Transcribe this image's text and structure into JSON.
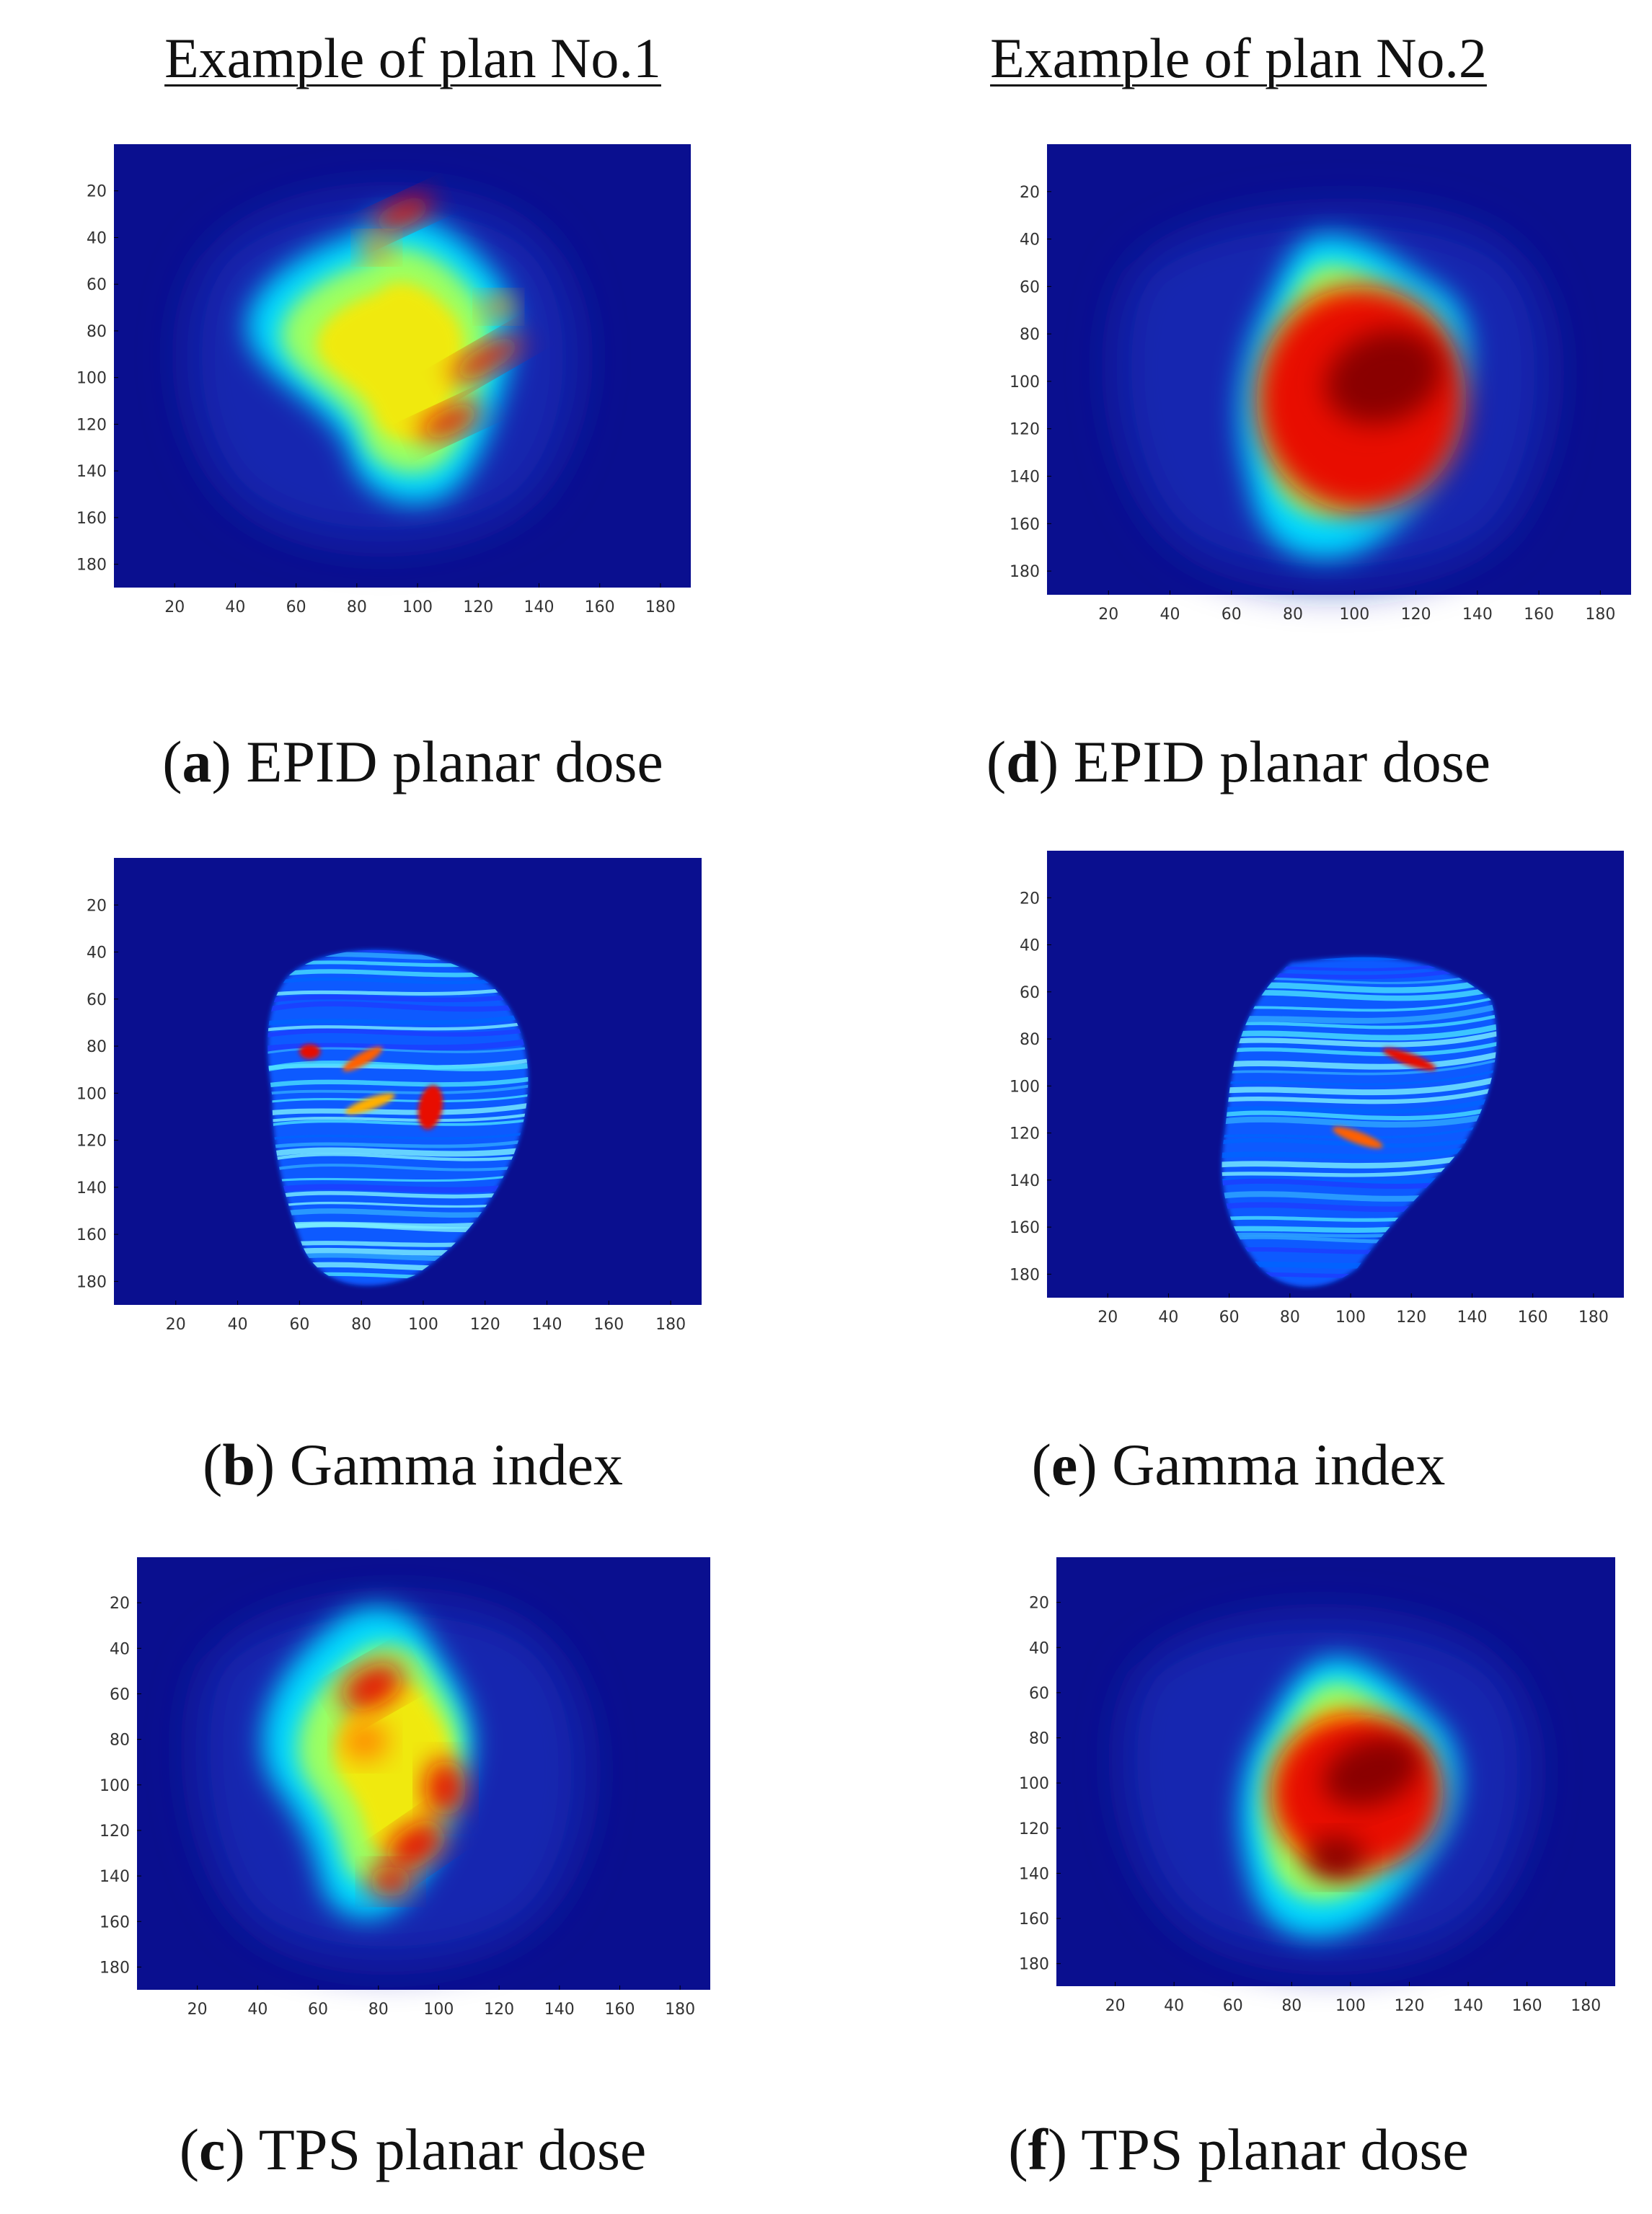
{
  "columns": [
    {
      "title": "Example of plan No.1"
    },
    {
      "title": "Example of plan No.2"
    }
  ],
  "colors": {
    "background": "#0a0f8f",
    "colormap": "jet"
  },
  "chart_data": [
    {
      "type": "heatmap",
      "panel": "a",
      "caption_letter": "a",
      "caption_text": "EPID planar dose",
      "xticks": [
        20,
        40,
        60,
        80,
        100,
        120,
        140,
        160,
        180
      ],
      "yticks": [
        20,
        40,
        60,
        80,
        100,
        120,
        140,
        160,
        180
      ],
      "xlim": [
        0,
        190
      ],
      "ylim": [
        0,
        190
      ]
    },
    {
      "type": "heatmap",
      "panel": "b",
      "caption_letter": "b",
      "caption_text": "Gamma index",
      "xticks": [
        20,
        40,
        60,
        80,
        100,
        120,
        140,
        160,
        180
      ],
      "yticks": [
        20,
        40,
        60,
        80,
        100,
        120,
        140,
        160,
        180
      ],
      "xlim": [
        0,
        190
      ],
      "ylim": [
        0,
        190
      ]
    },
    {
      "type": "heatmap",
      "panel": "c",
      "caption_letter": "c",
      "caption_text": "TPS planar dose",
      "xticks": [
        20,
        40,
        60,
        80,
        100,
        120,
        140,
        160,
        180
      ],
      "yticks": [
        20,
        40,
        60,
        80,
        100,
        120,
        140,
        160,
        180
      ],
      "xlim": [
        0,
        190
      ],
      "ylim": [
        0,
        190
      ]
    },
    {
      "type": "heatmap",
      "panel": "d",
      "caption_letter": "d",
      "caption_text": "EPID planar dose",
      "xticks": [
        20,
        40,
        60,
        80,
        100,
        120,
        140,
        160,
        180
      ],
      "yticks": [
        20,
        40,
        60,
        80,
        100,
        120,
        140,
        160,
        180
      ],
      "xlim": [
        0,
        190
      ],
      "ylim": [
        0,
        190
      ]
    },
    {
      "type": "heatmap",
      "panel": "e",
      "caption_letter": "e",
      "caption_text": "Gamma index",
      "xticks": [
        20,
        40,
        60,
        80,
        100,
        120,
        140,
        160,
        180
      ],
      "yticks": [
        20,
        40,
        60,
        80,
        100,
        120,
        140,
        160,
        180
      ],
      "xlim": [
        0,
        190
      ],
      "ylim": [
        0,
        190
      ]
    },
    {
      "type": "heatmap",
      "panel": "f",
      "caption_letter": "f",
      "caption_text": "TPS planar dose",
      "xticks": [
        20,
        40,
        60,
        80,
        100,
        120,
        140,
        160,
        180
      ],
      "yticks": [
        20,
        40,
        60,
        80,
        100,
        120,
        140,
        160,
        180
      ],
      "xlim": [
        0,
        190
      ],
      "ylim": [
        0,
        190
      ]
    }
  ]
}
